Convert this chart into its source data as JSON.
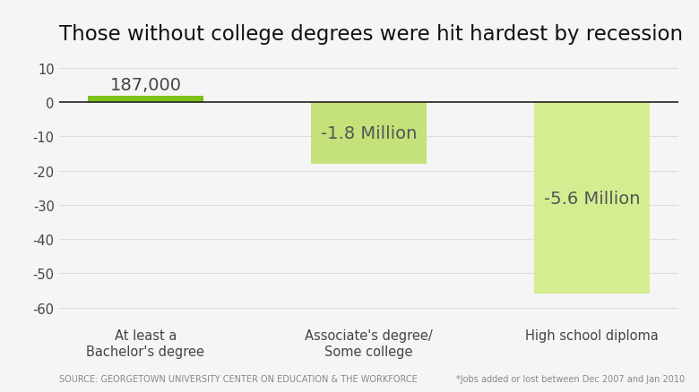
{
  "title": "Those without college degrees were hit hardest by recession",
  "categories": [
    "At least a\nBachelor's degree",
    "Associate's degree/\nSome college",
    "High school diploma"
  ],
  "values": [
    1.87,
    -18.0,
    -56.0
  ],
  "bar_labels": [
    "187,000",
    "-1.8 Million",
    "-5.6 Million"
  ],
  "bar_colors": [
    "#7dc31a",
    "#c5e17a",
    "#d4ed91"
  ],
  "background_color": "#f5f5f5",
  "plot_bg_color": "#f5f5f5",
  "yticks": [
    10,
    0,
    -10,
    -20,
    -30,
    -40,
    -50,
    -60
  ],
  "ylim": [
    -64,
    14
  ],
  "source_text": "SOURCE: GEORGETOWN UNIVERSITY CENTER ON EDUCATION & THE WORKFORCE",
  "footnote_text": "*Jobs added or lost between Dec 2007 and Jan 2010",
  "title_fontsize": 16.5,
  "label_fontsize": 14,
  "tick_fontsize": 10.5,
  "source_fontsize": 7,
  "grid_color": "#dddddd",
  "zero_line_color": "#222222",
  "text_color": "#444444",
  "label_color_pos": "#444444",
  "label_color_neg": "#555555"
}
